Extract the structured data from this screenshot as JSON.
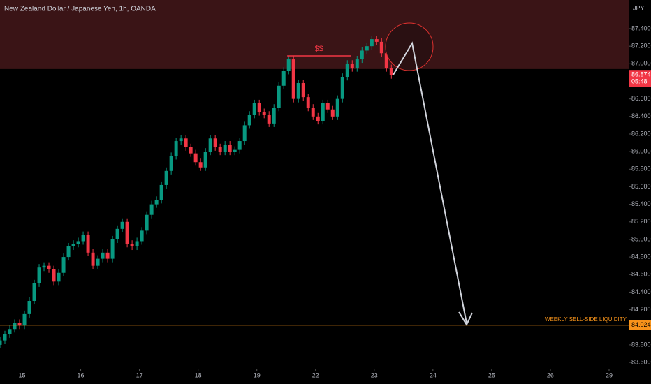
{
  "chart_data": {
    "type": "candlestick",
    "title": "New Zealand Dollar / Japanese Yen, 1h, OANDA",
    "currency": "JPY",
    "countdown": "05:48",
    "up_color": "#089981",
    "down_color": "#f23645",
    "x": [
      0,
      2,
      4,
      6,
      8,
      10,
      12,
      14,
      16,
      18,
      20,
      22,
      24,
      26,
      28,
      30,
      32,
      34,
      36,
      38,
      40,
      42,
      44,
      46,
      48,
      50,
      52,
      54,
      56,
      58,
      60,
      62,
      64,
      66,
      68,
      70,
      72,
      74,
      76,
      78,
      80,
      82,
      84,
      86,
      88,
      90,
      92,
      94,
      96,
      98,
      100,
      102,
      104,
      106,
      108,
      110,
      112,
      114,
      116,
      118,
      120,
      122,
      124,
      126,
      128,
      130,
      132,
      134,
      136,
      138,
      140,
      142,
      144,
      146,
      148,
      150,
      152,
      154,
      156,
      158,
      160
    ],
    "open": [
      83.8,
      83.85,
      83.92,
      83.98,
      84.05,
      84.02,
      84.15,
      84.3,
      84.5,
      84.68,
      84.7,
      84.66,
      84.52,
      84.62,
      84.8,
      84.92,
      84.95,
      84.98,
      85.05,
      84.85,
      84.7,
      84.78,
      84.85,
      84.78,
      85.0,
      85.12,
      85.2,
      84.95,
      84.92,
      84.98,
      85.1,
      85.28,
      85.4,
      85.45,
      85.62,
      85.78,
      85.95,
      86.12,
      86.15,
      86.05,
      85.98,
      85.88,
      85.82,
      86.0,
      86.15,
      86.05,
      86.0,
      86.08,
      86.0,
      86.02,
      86.12,
      86.3,
      86.42,
      86.55,
      86.45,
      86.42,
      86.32,
      86.5,
      86.75,
      86.92,
      87.05,
      86.6,
      86.78,
      86.62,
      86.5,
      86.4,
      86.35,
      86.55,
      86.48,
      86.4,
      86.6,
      86.85,
      87.0,
      86.95,
      87.05,
      87.15,
      87.2,
      87.28,
      87.25,
      87.12,
      86.95
    ],
    "high": [
      83.89,
      83.96,
      84.02,
      84.09,
      84.09,
      84.19,
      84.34,
      84.54,
      84.72,
      84.74,
      84.74,
      84.7,
      84.66,
      84.84,
      84.96,
      84.99,
      85.02,
      85.09,
      85.09,
      84.89,
      84.82,
      84.89,
      84.89,
      85.04,
      85.16,
      85.24,
      85.24,
      84.99,
      85.02,
      85.14,
      85.32,
      85.44,
      85.49,
      85.66,
      85.82,
      85.99,
      86.16,
      86.19,
      86.19,
      86.09,
      86.02,
      85.92,
      86.04,
      86.19,
      86.19,
      86.09,
      86.12,
      86.12,
      86.06,
      86.16,
      86.34,
      86.46,
      86.59,
      86.59,
      86.49,
      86.46,
      86.54,
      86.79,
      86.96,
      87.09,
      87.09,
      86.82,
      86.82,
      86.66,
      86.54,
      86.44,
      86.59,
      86.59,
      86.52,
      86.64,
      86.89,
      87.04,
      87.04,
      87.09,
      87.19,
      87.24,
      87.32,
      87.32,
      87.29,
      87.16,
      86.99
    ],
    "low": [
      83.76,
      83.81,
      83.88,
      83.94,
      83.98,
      83.98,
      84.11,
      84.26,
      84.46,
      84.64,
      84.62,
      84.48,
      84.48,
      84.58,
      84.76,
      84.88,
      84.91,
      84.94,
      84.81,
      84.66,
      84.66,
      84.74,
      84.74,
      84.74,
      84.96,
      85.08,
      84.91,
      84.88,
      84.88,
      84.94,
      85.06,
      85.24,
      85.36,
      85.41,
      85.58,
      85.74,
      85.91,
      86.08,
      86.01,
      85.94,
      85.84,
      85.78,
      85.78,
      85.96,
      86.01,
      85.96,
      85.96,
      85.96,
      85.96,
      85.98,
      86.08,
      86.26,
      86.38,
      86.41,
      86.38,
      86.28,
      86.28,
      86.46,
      86.71,
      86.88,
      86.56,
      86.56,
      86.58,
      86.46,
      86.36,
      86.31,
      86.31,
      86.44,
      86.36,
      86.36,
      86.56,
      86.81,
      86.91,
      86.91,
      87.01,
      87.11,
      87.16,
      87.21,
      87.08,
      86.91,
      86.83
    ],
    "close": [
      83.85,
      83.92,
      83.98,
      84.05,
      84.02,
      84.15,
      84.3,
      84.5,
      84.68,
      84.7,
      84.66,
      84.52,
      84.62,
      84.8,
      84.92,
      84.95,
      84.98,
      85.05,
      84.85,
      84.7,
      84.78,
      84.85,
      84.78,
      85.0,
      85.12,
      85.2,
      84.95,
      84.92,
      84.98,
      85.1,
      85.28,
      85.4,
      85.45,
      85.62,
      85.78,
      85.95,
      86.12,
      86.15,
      86.05,
      85.98,
      85.88,
      85.82,
      86.0,
      86.15,
      86.05,
      86.0,
      86.08,
      86.0,
      86.02,
      86.12,
      86.3,
      86.42,
      86.55,
      86.45,
      86.42,
      86.32,
      86.5,
      86.75,
      86.92,
      87.05,
      86.6,
      86.78,
      86.62,
      86.5,
      86.4,
      86.35,
      86.55,
      86.48,
      86.4,
      86.6,
      86.85,
      87.0,
      86.95,
      87.05,
      87.15,
      87.2,
      87.28,
      87.25,
      87.12,
      86.95,
      86.874
    ],
    "xlim": [
      0,
      257
    ],
    "xticks": [
      {
        "value": 9,
        "label": "15"
      },
      {
        "value": 33,
        "label": "16"
      },
      {
        "value": 57,
        "label": "17"
      },
      {
        "value": 81,
        "label": "18"
      },
      {
        "value": 105,
        "label": "19"
      },
      {
        "value": 129,
        "label": "22"
      },
      {
        "value": 153,
        "label": "23"
      },
      {
        "value": 177,
        "label": "24"
      },
      {
        "value": 201,
        "label": "25"
      },
      {
        "value": 225,
        "label": "26"
      },
      {
        "value": 249,
        "label": "29"
      }
    ],
    "ylim": [
      83.529,
      87.726
    ],
    "yticks": [
      {
        "value": 87.4,
        "label": "87.400"
      },
      {
        "value": 87.2,
        "label": "87.200"
      },
      {
        "value": 87.0,
        "label": "87.000"
      },
      {
        "value": 86.6,
        "label": "86.600"
      },
      {
        "value": 86.4,
        "label": "86.400"
      },
      {
        "value": 86.2,
        "label": "86.200"
      },
      {
        "value": 86.0,
        "label": "86.000"
      },
      {
        "value": 85.8,
        "label": "85.800"
      },
      {
        "value": 85.6,
        "label": "85.600"
      },
      {
        "value": 85.4,
        "label": "85.400"
      },
      {
        "value": 85.2,
        "label": "85.200"
      },
      {
        "value": 85.0,
        "label": "85.000"
      },
      {
        "value": 84.8,
        "label": "84.800"
      },
      {
        "value": 84.6,
        "label": "84.600"
      },
      {
        "value": 84.4,
        "label": "84.400"
      },
      {
        "value": 84.2,
        "label": "84.200"
      },
      {
        "value": 83.8,
        "label": "83.800"
      },
      {
        "value": 83.6,
        "label": "83.600"
      }
    ],
    "zone": {
      "low": 86.94,
      "high": 87.726,
      "color": "#3a1416"
    },
    "annotations": [
      {
        "text": "$$",
        "value": 87.09,
        "x": [
          117.4,
          143.4
        ],
        "color": "#f23645"
      }
    ],
    "hline": {
      "value": 84.024,
      "label": "WEEKLY SELL-SIDE LIQUIDITY",
      "color": "#f7931a"
    }
  }
}
